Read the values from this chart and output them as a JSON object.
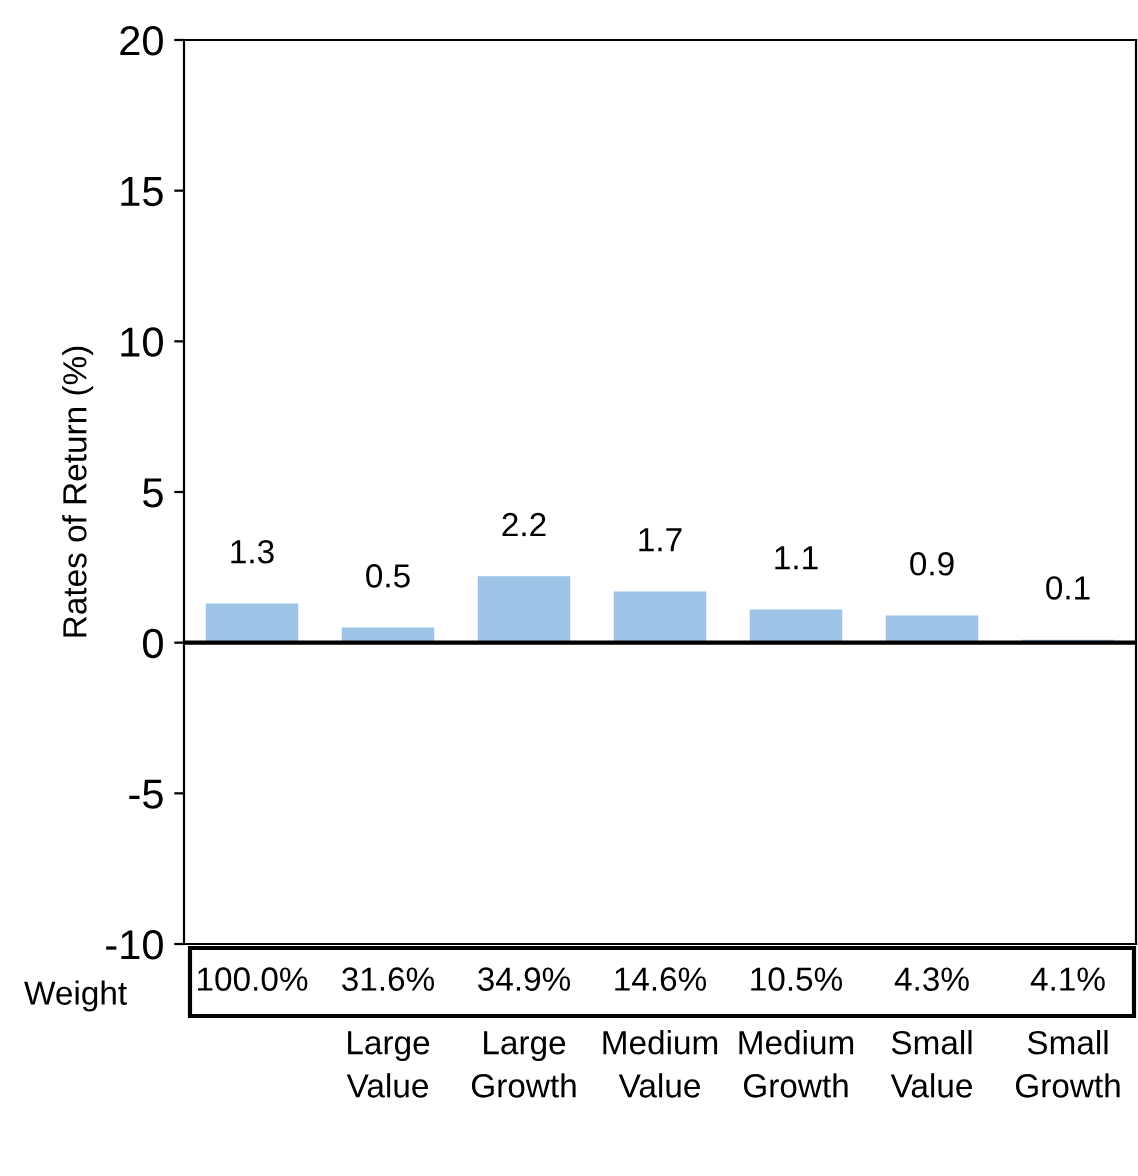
{
  "chart_data": {
    "type": "bar",
    "ylabel": "Rates of Return (%)",
    "categories": [
      null,
      "Large\nValue",
      "Large\nGrowth",
      "Medium\nValue",
      "Medium\nGrowth",
      "Small\nValue",
      "Small\nGrowth"
    ],
    "values": [
      1.3,
      0.5,
      2.2,
      1.7,
      1.1,
      0.9,
      0.1
    ],
    "color": "#9dc3e6",
    "data_labels": true,
    "ylim": [
      -10,
      20
    ],
    "yticks": [
      -10,
      -5,
      0,
      5,
      10,
      15,
      20
    ],
    "grid": false,
    "legend": false,
    "ref_lines": [
      {
        "axis": "y",
        "value": 0,
        "color": "#000000"
      }
    ],
    "annotations": [
      "Weight",
      "100.0%",
      "31.6%",
      "34.9%",
      "14.6%",
      "10.5%",
      "4.3%",
      "4.1%"
    ]
  }
}
